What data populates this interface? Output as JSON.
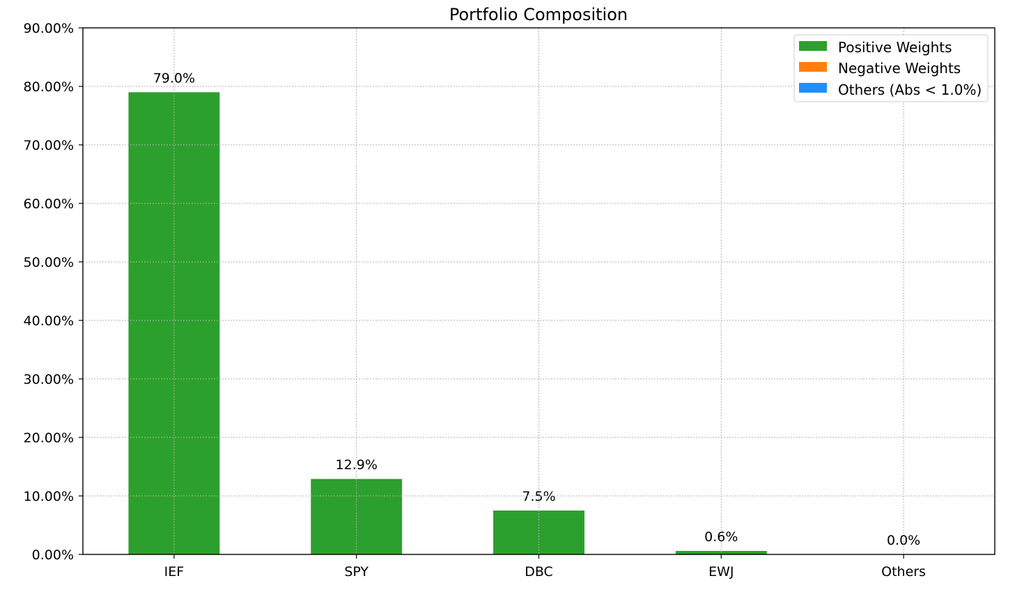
{
  "chart_data": {
    "type": "bar",
    "title": "Portfolio Composition",
    "xlabel": "",
    "ylabel": "",
    "categories": [
      "IEF",
      "SPY",
      "DBC",
      "EWJ",
      "Others"
    ],
    "values": [
      79.0,
      12.9,
      7.5,
      0.6,
      0.0
    ],
    "value_labels": [
      "79.0%",
      "12.9%",
      "7.5%",
      "0.6%",
      "0.0%"
    ],
    "ylim": [
      0,
      90
    ],
    "yticks": [
      0,
      10,
      20,
      30,
      40,
      50,
      60,
      70,
      80,
      90
    ],
    "ytick_labels": [
      "0.00%",
      "10.00%",
      "20.00%",
      "30.00%",
      "40.00%",
      "50.00%",
      "60.00%",
      "70.00%",
      "80.00%",
      "90.00%"
    ],
    "grid": true,
    "legend_position": "top-right",
    "legend": [
      {
        "label": "Positive Weights",
        "color": "#2ca02c"
      },
      {
        "label": "Negative Weights",
        "color": "#ff7f0e"
      },
      {
        "label": "Others (Abs < 1.0%)",
        "color": "#1e90ff"
      }
    ],
    "bar_color": "#2ca02c"
  }
}
